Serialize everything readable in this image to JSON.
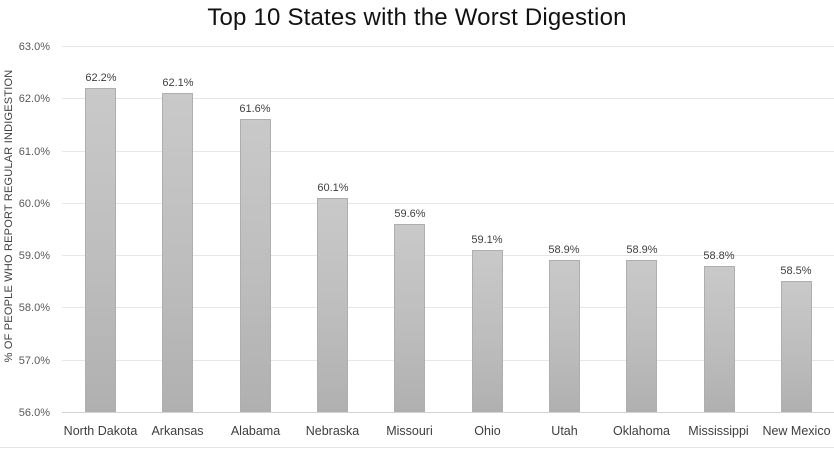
{
  "chart": {
    "title": "Top 10 States with the Worst Digestion",
    "ylabel": "% OF PEOPLE WHO REPORT REGULAR INDIGESTION"
  },
  "chart_data": {
    "type": "bar",
    "title": "Top 10 States with the Worst Digestion",
    "xlabel": "",
    "ylabel": "% OF PEOPLE WHO REPORT REGULAR INDIGESTION",
    "categories": [
      "North Dakota",
      "Arkansas",
      "Alabama",
      "Nebraska",
      "Missouri",
      "Ohio",
      "Utah",
      "Oklahoma",
      "Mississippi",
      "New Mexico"
    ],
    "values": [
      62.2,
      62.1,
      61.6,
      60.1,
      59.6,
      59.1,
      58.9,
      58.9,
      58.8,
      58.5
    ],
    "data_labels": [
      "62.2%",
      "62.1%",
      "61.6%",
      "60.1%",
      "59.6%",
      "59.1%",
      "58.9%",
      "58.9%",
      "58.8%",
      "58.5%"
    ],
    "ylim": [
      56.0,
      63.0
    ],
    "ytick_step": 1.0,
    "ytick_labels": [
      "56.0%",
      "57.0%",
      "58.0%",
      "59.0%",
      "60.0%",
      "61.0%",
      "62.0%",
      "63.0%"
    ],
    "grid": true,
    "legend": "none",
    "colors": {
      "bar_top": "#c9c9c9",
      "bar_bottom": "#b0b0b0",
      "bar_border": "#aeaeae",
      "gridline": "#e6e6e6",
      "axis_line": "#d2d2d2",
      "tick_text": "#595959",
      "label_text": "#404040",
      "title_text": "#111111",
      "background": "#ffffff"
    }
  }
}
